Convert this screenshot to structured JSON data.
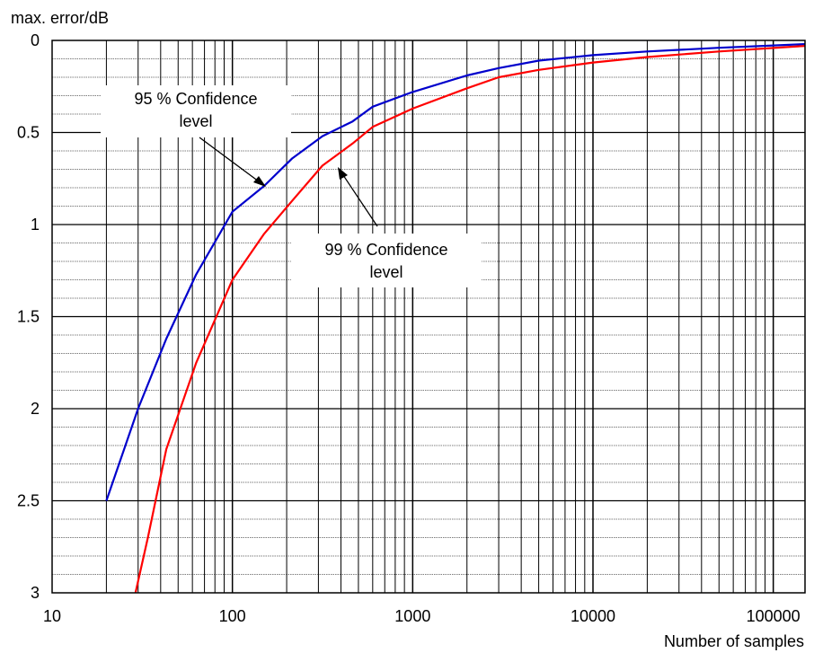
{
  "chart_data": {
    "type": "line",
    "title": "",
    "xlabel": "Number of samples",
    "ylabel": "max. error/dB",
    "x_scale": "log",
    "xlim": [
      10,
      150000
    ],
    "ylim": [
      3,
      0
    ],
    "y_inverted": true,
    "grid": true,
    "x_ticks": [
      "10",
      "100",
      "1000",
      "10000",
      "100000"
    ],
    "y_ticks": [
      "0",
      "0.5",
      "1",
      "1.5",
      "2",
      "2.5",
      "3"
    ],
    "series": [
      {
        "color": "#0000cc",
        "x": [
          20,
          30,
          43,
          63,
          100,
          150,
          215,
          316,
          464,
          600,
          1000,
          2000,
          3000,
          5000,
          10000,
          20000,
          50000,
          150000
        ],
        "y": [
          2.5,
          2.0,
          1.62,
          1.27,
          0.93,
          0.79,
          0.64,
          0.52,
          0.44,
          0.36,
          0.28,
          0.19,
          0.15,
          0.11,
          0.08,
          0.06,
          0.04,
          0.02
        ]
      },
      {
        "color": "#ff0000",
        "x": [
          29,
          34,
          43,
          63,
          100,
          150,
          215,
          316,
          464,
          600,
          1000,
          2000,
          3000,
          5000,
          10000,
          20000,
          50000,
          150000
        ],
        "y": [
          3.0,
          2.7,
          2.22,
          1.75,
          1.3,
          1.05,
          0.87,
          0.68,
          0.56,
          0.47,
          0.37,
          0.26,
          0.2,
          0.16,
          0.12,
          0.09,
          0.06,
          0.03
        ]
      }
    ],
    "annotations": [
      {
        "lines": [
          "95 % Confidence",
          "level"
        ]
      },
      {
        "lines": [
          "99 % Confidence",
          "level"
        ]
      }
    ]
  }
}
